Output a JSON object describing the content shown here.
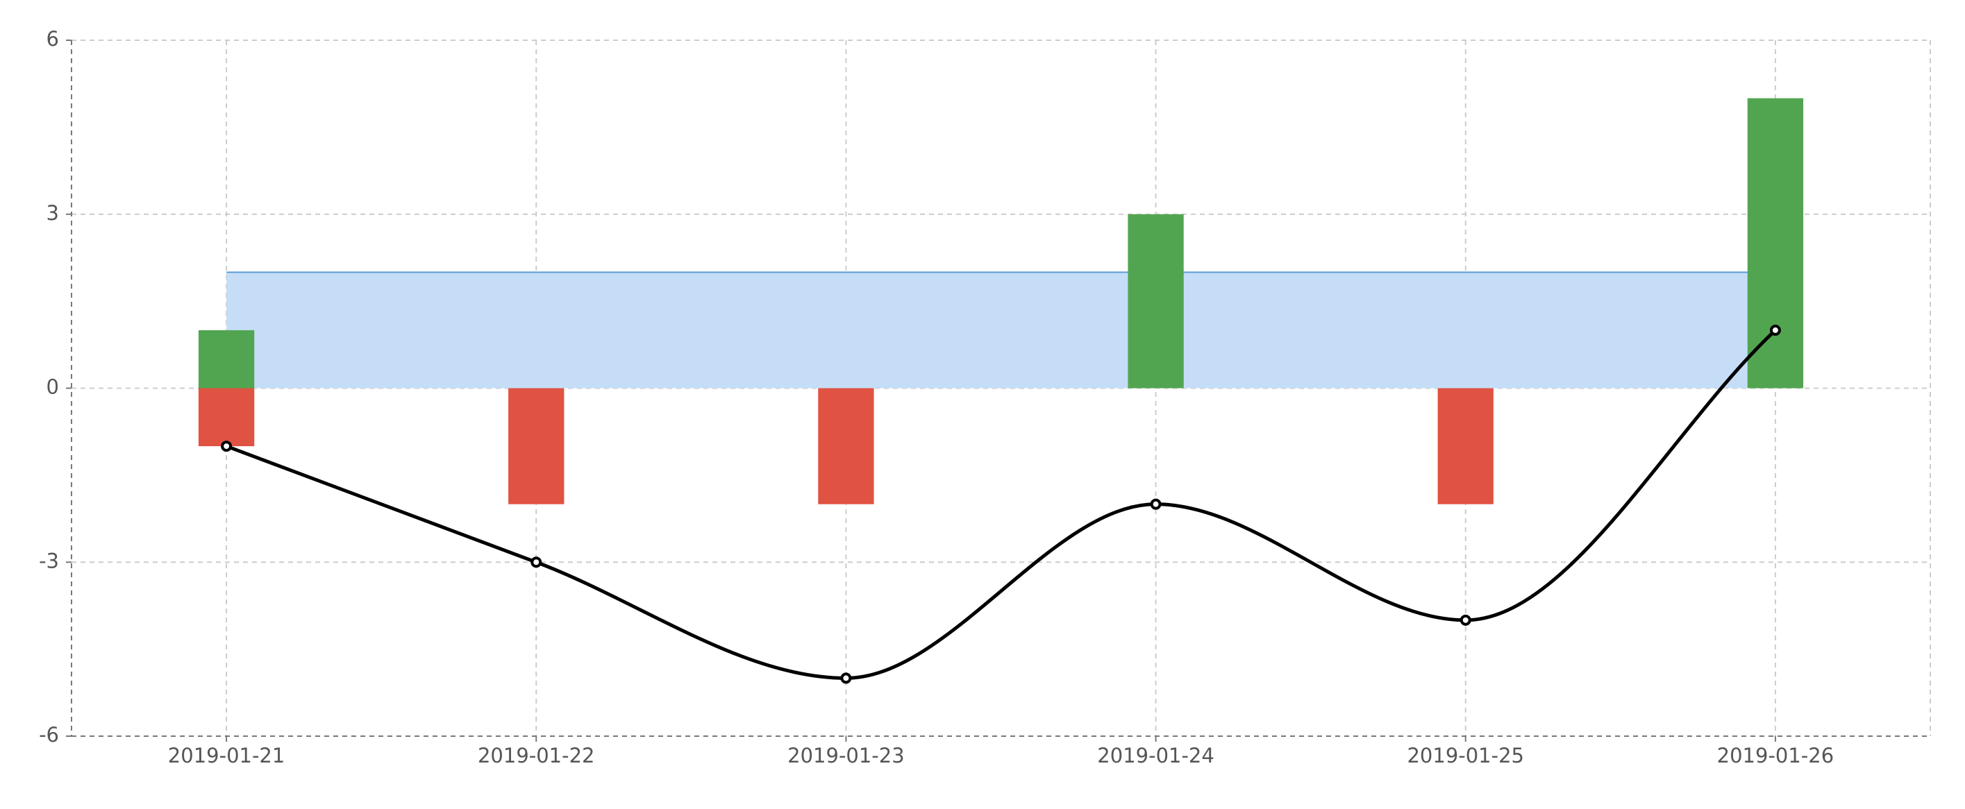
{
  "chart_data": {
    "type": "combo",
    "categories": [
      "2019-01-21",
      "2019-01-22",
      "2019-01-23",
      "2019-01-24",
      "2019-01-25",
      "2019-01-26"
    ],
    "series": [
      {
        "type": "area",
        "color": "#c6ddf7",
        "line_color": "#5b9bd5",
        "values": [
          2,
          2,
          2,
          2,
          2,
          2
        ]
      },
      {
        "type": "bar",
        "color": "#52a550",
        "values": [
          1,
          0,
          0,
          3,
          0,
          5
        ]
      },
      {
        "type": "bar",
        "color": "#e05242",
        "values": [
          -1,
          -2,
          -2,
          0,
          -2,
          0
        ]
      },
      {
        "type": "line",
        "color": "#000000",
        "smooth": true,
        "values": [
          -1,
          -3,
          -5,
          -2,
          -4,
          1
        ]
      }
    ],
    "ylim": [
      -6,
      6
    ],
    "yticks": [
      -6,
      -3,
      0,
      3,
      6
    ],
    "grid": true
  }
}
